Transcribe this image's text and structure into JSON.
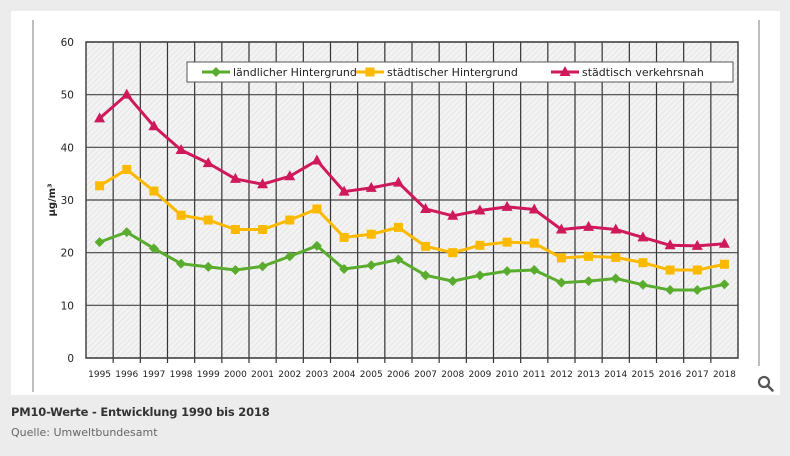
{
  "chart_data": {
    "type": "line",
    "title": "PM10-Werte - Entwicklung 1990 bis 2018",
    "xlabel": "",
    "ylabel": "µg/m³",
    "ylim": [
      0,
      60
    ],
    "yticks": [
      0,
      10,
      20,
      30,
      40,
      50,
      60
    ],
    "grid": true,
    "legend_position": "top-right",
    "x": [
      "1995",
      "1996",
      "1997",
      "1998",
      "1999",
      "2000",
      "2001",
      "2002",
      "2003",
      "2004",
      "2005",
      "2006",
      "2007",
      "2008",
      "2009",
      "2010",
      "2011",
      "2012",
      "2013",
      "2014",
      "2015",
      "2016",
      "2017",
      "2018"
    ],
    "series": [
      {
        "name": "ländlicher Hintergrund",
        "color": "#5aac2e",
        "marker": "diamond",
        "values": [
          22.0,
          23.9,
          20.8,
          17.9,
          17.3,
          16.7,
          17.4,
          19.3,
          21.3,
          16.9,
          17.6,
          18.7,
          15.7,
          14.6,
          15.7,
          16.5,
          16.7,
          14.3,
          14.6,
          15.1,
          13.9,
          12.9,
          12.9,
          14.0
        ]
      },
      {
        "name": "städtischer Hintergrund",
        "color": "#fbb900",
        "marker": "square",
        "values": [
          32.7,
          35.8,
          31.7,
          27.1,
          26.2,
          24.4,
          24.4,
          26.2,
          28.3,
          22.9,
          23.5,
          24.8,
          21.2,
          20.0,
          21.4,
          22.0,
          21.8,
          19.0,
          19.3,
          19.1,
          18.1,
          16.7,
          16.7,
          17.8
        ]
      },
      {
        "name": "städtisch verkehrsnah",
        "color": "#d0195b",
        "marker": "triangle",
        "values": [
          45.5,
          50.0,
          44.0,
          39.5,
          37.0,
          34.0,
          33.0,
          34.5,
          37.5,
          31.6,
          32.3,
          33.3,
          28.3,
          27.0,
          28.0,
          28.7,
          28.2,
          24.4,
          24.9,
          24.4,
          22.9,
          21.4,
          21.3,
          21.7
        ]
      }
    ]
  },
  "caption": {
    "title": "PM10-Werte - Entwicklung 1990 bis 2018",
    "source": "Quelle: Umweltbundesamt"
  },
  "controls": {
    "zoom_icon": "magnifier-icon"
  }
}
